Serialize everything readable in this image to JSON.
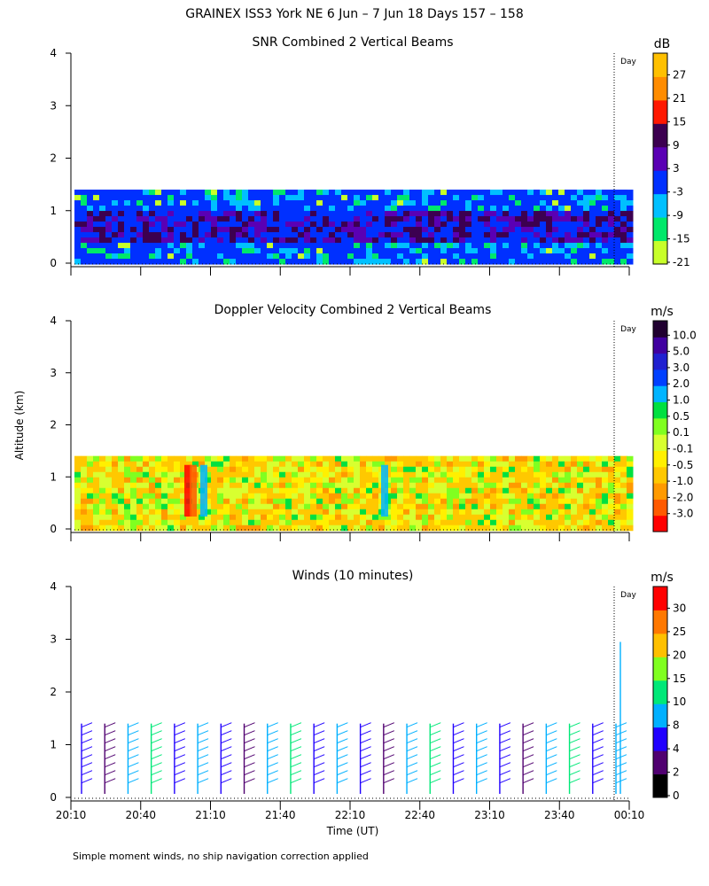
{
  "figure": {
    "title": "GRAINEX ISS3 York NE   6 Jun –  7 Jun 18 Days 157 – 158",
    "ylabel": "Altitude (km)",
    "xlabel": "Time (UT)",
    "footnote": "Simple moment winds, no ship navigation correction applied",
    "day_marker_label": "Day",
    "x_ticks": [
      "20:10",
      "20:40",
      "21:10",
      "21:40",
      "22:10",
      "22:40",
      "23:10",
      "23:40",
      "00:10"
    ],
    "y_ticks": [
      "0",
      "1",
      "2",
      "3",
      "4"
    ]
  },
  "chart_data": [
    {
      "type": "heatmap",
      "title": "SNR Combined 2 Vertical Beams",
      "ylabel": "Altitude (km)",
      "xlim": [
        "20:10",
        "00:10"
      ],
      "ylim": [
        0,
        4
      ],
      "colorbar": {
        "unit": "dB",
        "ticks": [
          "27",
          "21",
          "15",
          "9",
          "3",
          "-3",
          "-9",
          "-15",
          "-21"
        ],
        "colors": [
          "#c8ff2a",
          "#00e86a",
          "#00c0ff",
          "#0030ff",
          "#5a00b4",
          "#3c0050",
          "#ff1800",
          "#ff8c00",
          "#ffc000"
        ]
      },
      "data_top_km": 1.4,
      "description_values": {
        "typical_low_layer_dB": [
          3,
          9
        ],
        "typical_upper_layer_dB": [
          -9,
          -3
        ]
      }
    },
    {
      "type": "heatmap",
      "title": "Doppler Velocity Combined 2 Vertical Beams",
      "ylabel": "Altitude (km)",
      "xlim": [
        "20:10",
        "00:10"
      ],
      "ylim": [
        0,
        4
      ],
      "colorbar": {
        "unit": "m/s",
        "ticks": [
          "10.0",
          "5.0",
          "3.0",
          "2.0",
          "1.0",
          "0.5",
          "0.1",
          "-0.1",
          "-0.5",
          "-1.0",
          "-2.0",
          "-3.0"
        ],
        "colors": [
          "#ff0000",
          "#ff5a00",
          "#ff9a00",
          "#ffc800",
          "#fff000",
          "#d8ff30",
          "#80ff20",
          "#00e040",
          "#00b4ff",
          "#0040ff",
          "#2020d0",
          "#4000a0",
          "#200030"
        ]
      },
      "data_top_km": 1.4
    },
    {
      "type": "scatter",
      "title": "Winds (10 minutes)",
      "ylabel": "Altitude (km)",
      "xlim": [
        "20:10",
        "00:10"
      ],
      "ylim": [
        0,
        4
      ],
      "colorbar": {
        "unit": "m/s",
        "ticks": [
          "30",
          "25",
          "20",
          "15",
          "10",
          "8",
          "4",
          "2",
          "0"
        ],
        "colors": [
          "#000000",
          "#500070",
          "#2000ff",
          "#00b0ff",
          "#00e878",
          "#80ff20",
          "#ffc000",
          "#ff7800",
          "#ff0000"
        ]
      },
      "profiles_count": 24,
      "profile_top_km": 1.4
    }
  ]
}
